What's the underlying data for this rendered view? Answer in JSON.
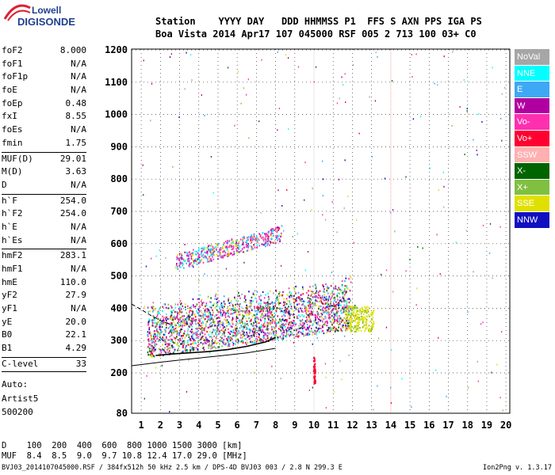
{
  "logo": {
    "top": "Lowell",
    "bottom": "DIGISONDE"
  },
  "header": {
    "line1": "Station    YYYY DAY   DDD HHMMSS P1  FFS S AXN PPS IGA PS",
    "line2": "Boa Vista 2014 Apr17 107 045000 RSF 005 2 713 100 03+ C0"
  },
  "params_group1": [
    {
      "k": "foF2",
      "v": "8.000"
    },
    {
      "k": "foF1",
      "v": "N/A"
    },
    {
      "k": "foF1p",
      "v": "N/A"
    },
    {
      "k": "foE",
      "v": "N/A"
    },
    {
      "k": "foEp",
      "v": "0.48"
    },
    {
      "k": "fxI",
      "v": "8.55"
    },
    {
      "k": "foEs",
      "v": "N/A"
    },
    {
      "k": "fmin",
      "v": "1.75"
    }
  ],
  "params_group2": [
    {
      "k": "MUF(D)",
      "v": "29.01"
    },
    {
      "k": "M(D)",
      "v": "3.63"
    },
    {
      "k": "D",
      "v": "N/A"
    }
  ],
  "params_group3": [
    {
      "k": "h`F",
      "v": "254.0"
    },
    {
      "k": "h`F2",
      "v": "254.0"
    },
    {
      "k": "h`E",
      "v": "N/A"
    },
    {
      "k": "h`Es",
      "v": "N/A"
    }
  ],
  "params_group4": [
    {
      "k": "hmF2",
      "v": "283.1"
    },
    {
      "k": "hmF1",
      "v": "N/A"
    },
    {
      "k": "hmE",
      "v": "110.0"
    },
    {
      "k": "yF2",
      "v": "27.9"
    },
    {
      "k": "yF1",
      "v": "N/A"
    },
    {
      "k": "yE",
      "v": "20.0"
    },
    {
      "k": "B0",
      "v": "22.1"
    },
    {
      "k": "B1",
      "v": "4.29"
    }
  ],
  "clevel": {
    "k": "C-level",
    "v": "33"
  },
  "auto": [
    "Auto:",
    "Artist5",
    "500200"
  ],
  "footer": {
    "d_row": "D    100  200  400  600  800 1000 1500 3000 [km]",
    "muf_row": "MUF  8.4  8.5  9.0  9.7 10.8 12.4 17.0 29.0 [MHz]",
    "info": "BVJ03_2014107045000.RSF / 384fx512h 50 kHz 2.5 km / DPS-4D BVJ03 003 / 2.8 N 299.3 E",
    "version": "Ion2Png v. 1.3.17"
  },
  "legend": [
    {
      "label": "NoVal",
      "color": "#a6a6a6"
    },
    {
      "label": "NNE",
      "color": "#00ffff"
    },
    {
      "label": "E",
      "color": "#3fa8f5"
    },
    {
      "label": "W",
      "color": "#b000a0"
    },
    {
      "label": "Vo-",
      "color": "#ff30b0"
    },
    {
      "label": "Vo+",
      "color": "#ff0030"
    },
    {
      "label": "SSW",
      "color": "#ffb0b0"
    },
    {
      "label": "X-",
      "color": "#006400"
    },
    {
      "label": "X+",
      "color": "#80c040"
    },
    {
      "label": "SSE",
      "color": "#e0e000"
    },
    {
      "label": "NNW",
      "color": "#1010c0"
    }
  ],
  "chart_data": {
    "type": "scatter",
    "title": "",
    "xlabel": "",
    "ylabel": "",
    "x_ticks": [
      1,
      2,
      3,
      4,
      5,
      6,
      7,
      8,
      9,
      10,
      11,
      12,
      13,
      14,
      15,
      16,
      17,
      18,
      19,
      20
    ],
    "y_ticks": [
      80,
      200,
      300,
      400,
      500,
      600,
      700,
      800,
      900,
      1000,
      1100,
      1200
    ],
    "xlim": [
      0.5,
      20.2
    ],
    "ylim": [
      80,
      1200
    ],
    "grid": true,
    "legend_position": "right",
    "series": [
      {
        "name": "",
        "color": "#000000",
        "points": [
          [
            1.75,
            254
          ],
          [
            2.5,
            258
          ],
          [
            3.5,
            262
          ],
          [
            4.5,
            266
          ],
          [
            5.5,
            272
          ],
          [
            6.5,
            282
          ],
          [
            7.5,
            296
          ],
          [
            8.0,
            310
          ]
        ]
      },
      {
        "name": "",
        "color": "#000000",
        "points": [
          [
            0.5,
            222
          ],
          [
            2,
            233
          ],
          [
            3.5,
            243
          ],
          [
            5,
            252
          ],
          [
            6.5,
            262
          ],
          [
            8,
            276
          ]
        ]
      },
      {
        "name": "",
        "color": "#000000",
        "points": [
          [
            0.5,
            413
          ],
          [
            1.0,
            396
          ],
          [
            1.5,
            378
          ],
          [
            2.0,
            362
          ],
          [
            2.5,
            350
          ]
        ]
      }
    ]
  }
}
